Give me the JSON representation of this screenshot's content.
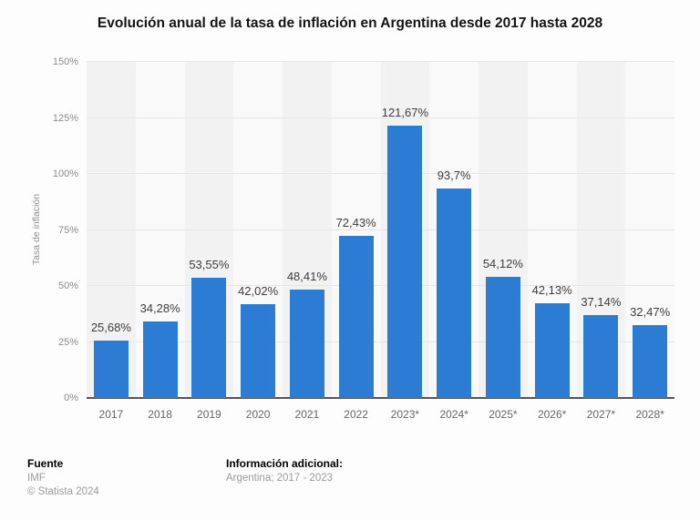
{
  "chart_data": {
    "type": "bar",
    "title": "Evolución anual de la tasa de inflación en Argentina desde 2017 hasta 2028",
    "xlabel": "",
    "ylabel": "Tasa de inflación",
    "categories": [
      "2017",
      "2018",
      "2019",
      "2020",
      "2021",
      "2022",
      "2023*",
      "2024*",
      "2025*",
      "2026*",
      "2027*",
      "2028*"
    ],
    "values": [
      25.68,
      34.28,
      53.55,
      42.02,
      48.41,
      72.43,
      121.67,
      93.7,
      54.12,
      42.13,
      37.14,
      32.47
    ],
    "value_labels": [
      "25,68%",
      "34,28%",
      "53,55%",
      "42,02%",
      "48,41%",
      "72,43%",
      "121,67%",
      "93,7%",
      "54,12%",
      "42,13%",
      "37,14%",
      "32,47%"
    ],
    "ylim": [
      0,
      150
    ],
    "yticks": [
      0,
      25,
      50,
      75,
      100,
      125,
      150
    ],
    "ytick_labels": [
      "0%",
      "25%",
      "50%",
      "75%",
      "100%",
      "125%",
      "150%"
    ],
    "grid": true,
    "legend": false,
    "colors": {
      "bar": "#2d7cd4",
      "stripe_dark": "#f2f2f2",
      "stripe_light": "#f9f9f9",
      "gridline": "#e5e5e5",
      "axis_line": "#565656"
    }
  },
  "footer": {
    "source_label": "Fuente",
    "source_lines": [
      "IMF",
      "© Statista 2024"
    ],
    "additional_label": "Información adicional:",
    "additional_lines": [
      "Argentina; 2017 - 2023"
    ]
  }
}
